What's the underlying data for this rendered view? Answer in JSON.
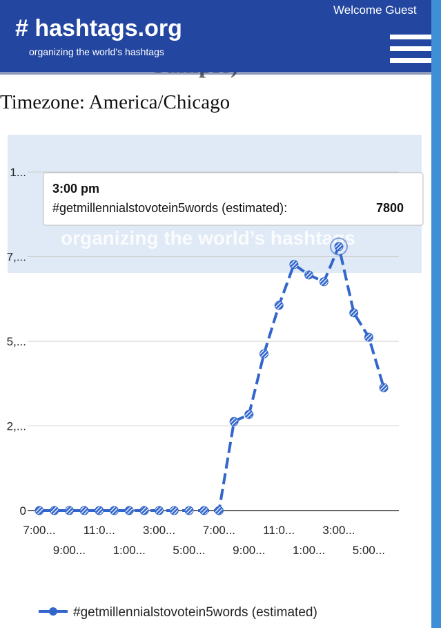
{
  "header": {
    "logo": "# hashtags.org",
    "tagline": "organizing the world’s hashtags",
    "welcome": "Welcome Guest"
  },
  "page": {
    "heading": "Sample)",
    "timezone": "Timezone: America/Chicago"
  },
  "tooltip": {
    "title": "3:00 pm",
    "label": "#getmillennialstovotein5words (estimated):"
  },
  "chart_data": {
    "type": "line",
    "categories": [
      "7:00...",
      null,
      "9:00...",
      null,
      "11:0...",
      null,
      "1:00...",
      null,
      "3:00...",
      null,
      "5:00...",
      null,
      "7:00...",
      null,
      "9:00...",
      null,
      "11:0...",
      null,
      "1:00...",
      null,
      "3:00...",
      null,
      "5:00...",
      null
    ],
    "series": [
      {
        "name": "#getmillennialstovotein5words (estimated)",
        "color": "#3366cc",
        "values": [
          0,
          0,
          0,
          0,
          0,
          0,
          0,
          0,
          0,
          0,
          0,
          0,
          0,
          2630,
          2840,
          4630,
          6060,
          7270,
          6960,
          6760,
          7800,
          5840,
          5120,
          3630
        ]
      }
    ],
    "ylim": [
      0,
      10000
    ],
    "yticks": [
      0,
      {
        "value": 2500,
        "label": "2,..."
      },
      {
        "value": 5000,
        "label": "5,..."
      },
      {
        "value": 7500,
        "label": "7,..."
      },
      {
        "value": 10000,
        "label": "1..."
      }
    ],
    "grid": true,
    "legend": "bottom"
  }
}
